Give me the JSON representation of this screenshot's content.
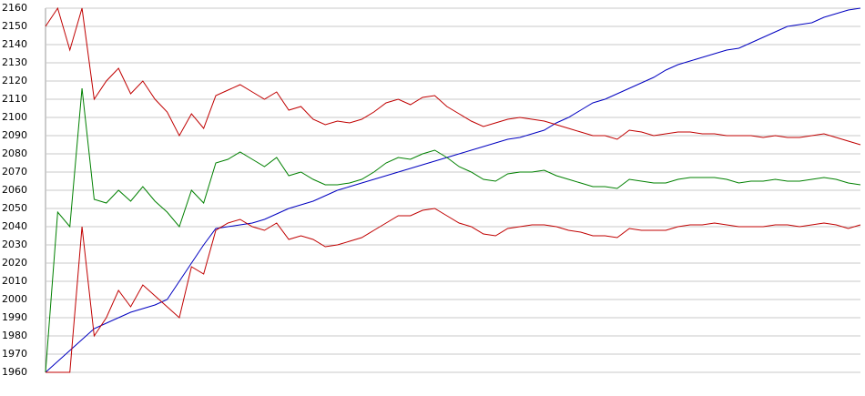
{
  "chart_data": {
    "type": "line",
    "categories": [
      null,
      null,
      null,
      null,
      null,
      null,
      null,
      null,
      null,
      null,
      null,
      null,
      null,
      null,
      null,
      null,
      null,
      null,
      null,
      null,
      null,
      null,
      null,
      null,
      null,
      null,
      null,
      null,
      null,
      null,
      null,
      null,
      null,
      null,
      null,
      null,
      null,
      null,
      null,
      null,
      null,
      null,
      null,
      null,
      null,
      null,
      null,
      null,
      null,
      null,
      null,
      null,
      null,
      null,
      null,
      null,
      null,
      null,
      null,
      null,
      null,
      null,
      null,
      null,
      null,
      null,
      null,
      null
    ],
    "ylim": [
      1960,
      2160
    ],
    "yticks": [
      1960,
      1970,
      1980,
      1990,
      2000,
      2010,
      2020,
      2030,
      2040,
      2050,
      2060,
      2070,
      2080,
      2090,
      2100,
      2110,
      2120,
      2130,
      2140,
      2150,
      2160
    ],
    "grid": true,
    "series": [
      {
        "color": "#0000c0",
        "values": [
          1960,
          1966,
          1972,
          1978,
          1984,
          1987,
          1990,
          1993,
          1995,
          1997,
          2000,
          2010,
          2020,
          2030,
          2039,
          2040,
          2041,
          2042,
          2044,
          2047,
          2050,
          2052,
          2054,
          2057,
          2060,
          2062,
          2064,
          2066,
          2068,
          2070,
          2072,
          2074,
          2076,
          2078,
          2080,
          2082,
          2084,
          2086,
          2088,
          2089,
          2091,
          2093,
          2097,
          2100,
          2104,
          2108,
          2110,
          2113,
          2116,
          2119,
          2122,
          2126,
          2129,
          2131,
          2133,
          2135,
          2137,
          2138,
          2141,
          2144,
          2147,
          2150,
          2151,
          2152,
          2155,
          2157,
          2159,
          2160
        ]
      },
      {
        "color": "#c00000",
        "values": [
          2150,
          2160,
          2137,
          2160,
          2110,
          2120,
          2127,
          2113,
          2120,
          2110,
          2103,
          2090,
          2102,
          2094,
          2112,
          2115,
          2118,
          2114,
          2110,
          2114,
          2104,
          2106,
          2099,
          2096,
          2098,
          2097,
          2099,
          2103,
          2108,
          2110,
          2107,
          2111,
          2112,
          2106,
          2102,
          2098,
          2095,
          2097,
          2099,
          2100,
          2099,
          2098,
          2096,
          2094,
          2092,
          2090,
          2090,
          2088,
          2093,
          2092,
          2090,
          2091,
          2092,
          2092,
          2091,
          2091,
          2090,
          2090,
          2090,
          2089,
          2090,
          2089,
          2089,
          2090,
          2091,
          2089,
          2087,
          2085
        ]
      },
      {
        "color": "#008000",
        "values": [
          1960,
          2048,
          2040,
          2116,
          2055,
          2053,
          2060,
          2054,
          2062,
          2054,
          2048,
          2040,
          2060,
          2053,
          2075,
          2077,
          2081,
          2077,
          2073,
          2078,
          2068,
          2070,
          2066,
          2063,
          2063,
          2064,
          2066,
          2070,
          2075,
          2078,
          2077,
          2080,
          2082,
          2078,
          2073,
          2070,
          2066,
          2065,
          2069,
          2070,
          2070,
          2071,
          2068,
          2066,
          2064,
          2062,
          2062,
          2061,
          2066,
          2065,
          2064,
          2064,
          2066,
          2067,
          2067,
          2067,
          2066,
          2064,
          2065,
          2065,
          2066,
          2065,
          2065,
          2066,
          2067,
          2066,
          2064,
          2063
        ]
      },
      {
        "color": "#c00000",
        "values": [
          1960,
          1960,
          1960,
          2040,
          1980,
          1990,
          2005,
          1996,
          2008,
          2002,
          1996,
          1990,
          2018,
          2014,
          2038,
          2042,
          2044,
          2040,
          2038,
          2042,
          2033,
          2035,
          2033,
          2029,
          2030,
          2032,
          2034,
          2038,
          2042,
          2046,
          2046,
          2049,
          2050,
          2046,
          2042,
          2040,
          2036,
          2035,
          2039,
          2040,
          2041,
          2041,
          2040,
          2038,
          2037,
          2035,
          2035,
          2034,
          2039,
          2038,
          2038,
          2038,
          2040,
          2041,
          2041,
          2042,
          2041,
          2040,
          2040,
          2040,
          2041,
          2041,
          2040,
          2041,
          2042,
          2041,
          2039,
          2041
        ]
      }
    ]
  }
}
